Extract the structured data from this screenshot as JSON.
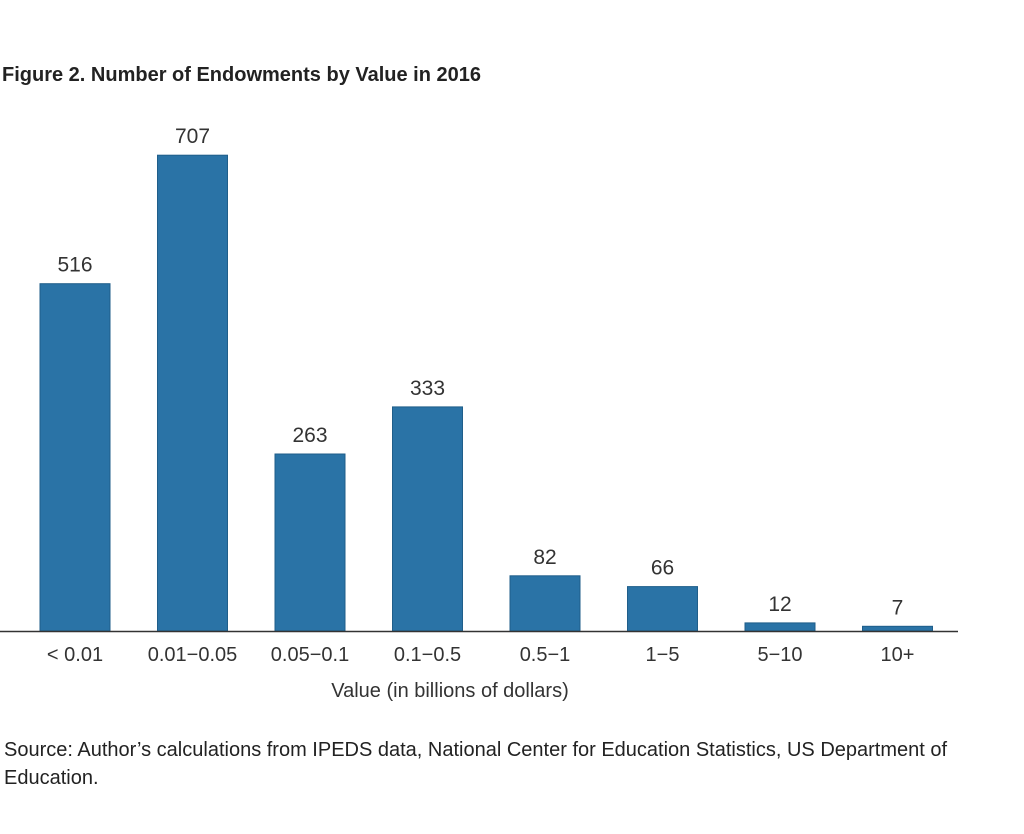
{
  "figure": {
    "title": "Figure 2. Number of Endowments by Value in 2016",
    "source": "Source:  Author’s calculations from IPEDS data, National Center for Education Statistics, US Department of Education."
  },
  "chart_data": {
    "type": "bar",
    "title": "Figure 2. Number of Endowments by Value in 2016",
    "xlabel": "Value (in billions of dollars)",
    "ylabel": "",
    "categories": [
      "< 0.01",
      "0.01−0.05",
      "0.05−0.1",
      "0.1−0.5",
      "0.5−1",
      "1−5",
      "5−10",
      "10+"
    ],
    "values": [
      516,
      707,
      263,
      333,
      82,
      66,
      12,
      7
    ],
    "data_labels": [
      "516",
      "707",
      "263",
      "333",
      "82",
      "66",
      "12",
      "7"
    ],
    "ylim": [
      0,
      800
    ],
    "grid": false,
    "legend": "none",
    "bar_color": "#2a73a6",
    "axis_color": "#333333"
  }
}
